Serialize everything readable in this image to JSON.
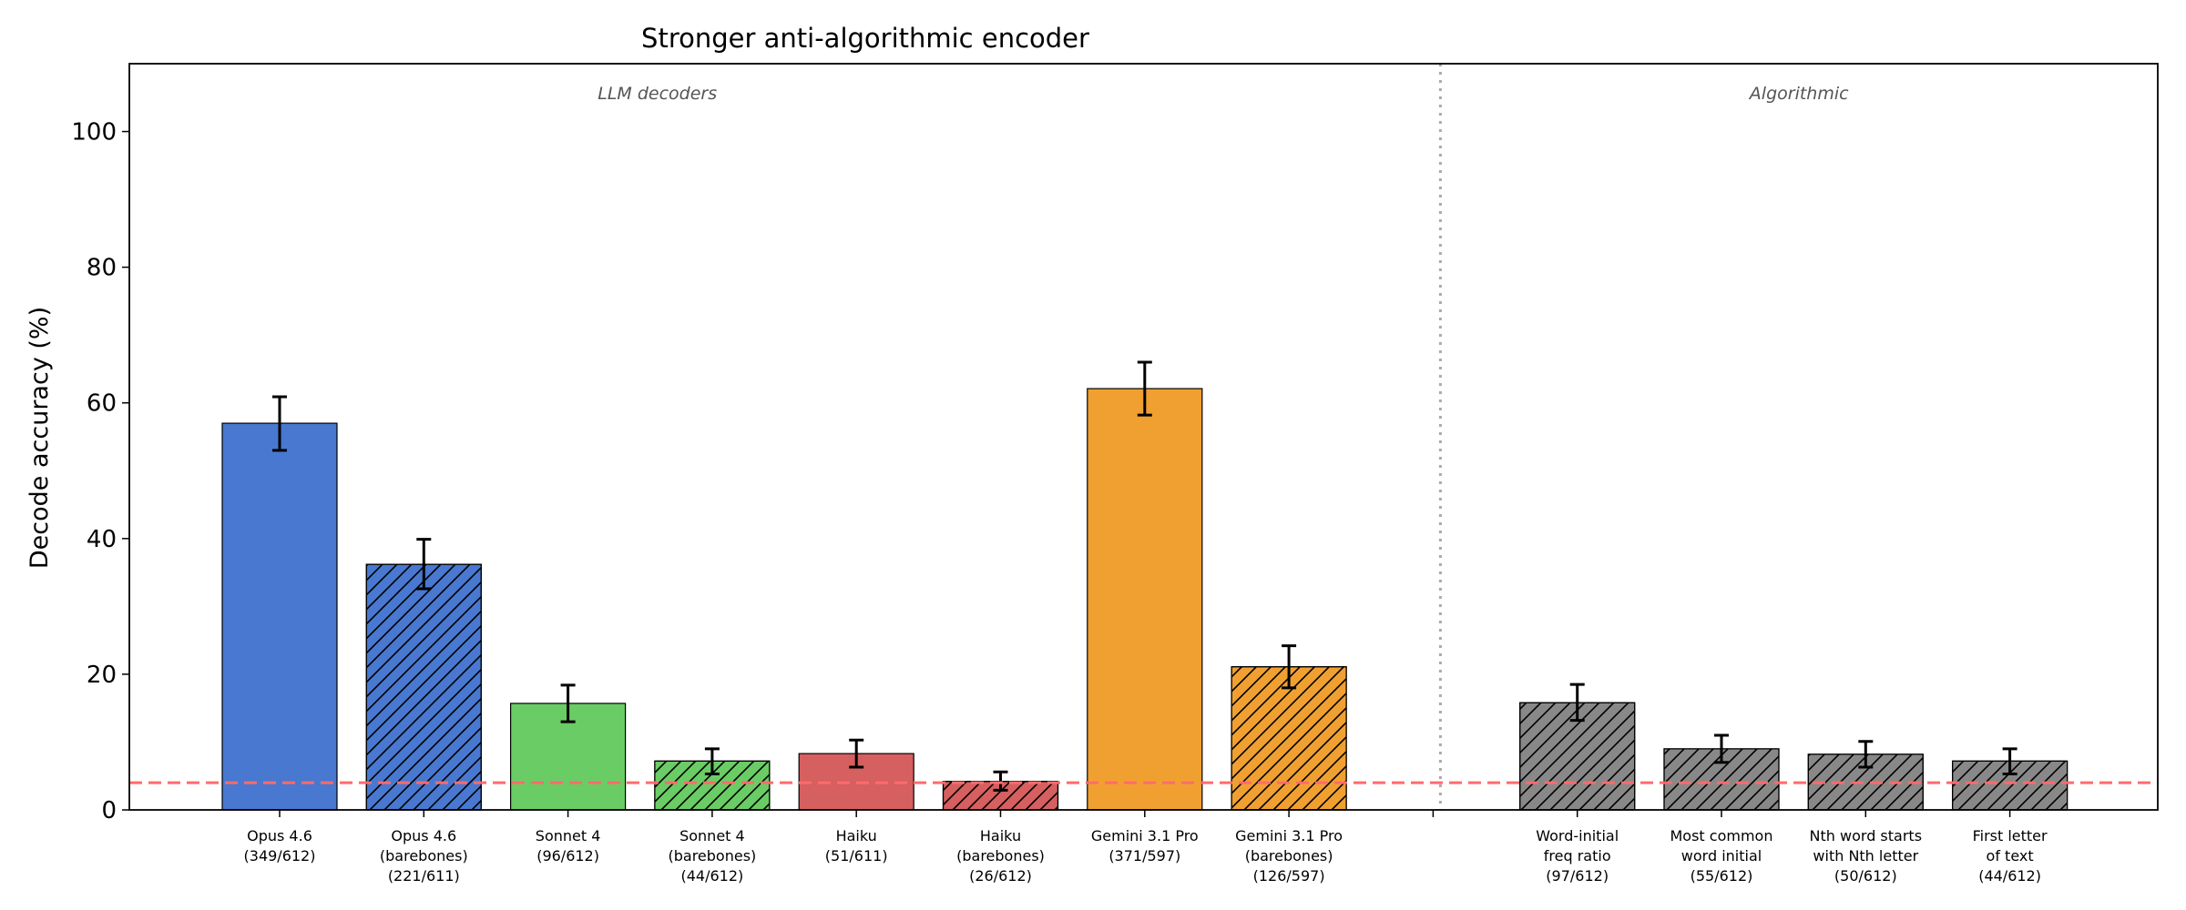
{
  "chart_data": {
    "type": "bar",
    "title": "Stronger anti-algorithmic encoder",
    "xlabel": "",
    "ylabel": "Decode accuracy (%)",
    "ylim": [
      0,
      110
    ],
    "yticks": [
      0,
      20,
      40,
      60,
      80,
      100
    ],
    "chance_line": 4,
    "chance_line_color": "#ff6b6b",
    "groups": [
      {
        "label": "LLM decoders",
        "first": 0,
        "last": 7
      },
      {
        "label": "Algorithmic",
        "first": 9,
        "last": 12
      }
    ],
    "bars": [
      {
        "label_lines": [
          "Opus 4.6",
          "(349/612)"
        ],
        "value": 57.0,
        "err_low": 53.0,
        "err_high": 60.9,
        "color": "#4878d0",
        "hatch": false
      },
      {
        "label_lines": [
          "Opus 4.6",
          "(barebones)",
          "(221/611)"
        ],
        "value": 36.2,
        "err_low": 32.6,
        "err_high": 39.9,
        "color": "#4878d0",
        "hatch": true
      },
      {
        "label_lines": [
          "Sonnet 4",
          "(96/612)"
        ],
        "value": 15.7,
        "err_low": 13.0,
        "err_high": 18.4,
        "color": "#6acc64",
        "hatch": false
      },
      {
        "label_lines": [
          "Sonnet 4",
          "(barebones)",
          "(44/612)"
        ],
        "value": 7.2,
        "err_low": 5.3,
        "err_high": 9.0,
        "color": "#6acc64",
        "hatch": true
      },
      {
        "label_lines": [
          "Haiku",
          "(51/611)"
        ],
        "value": 8.3,
        "err_low": 6.3,
        "err_high": 10.3,
        "color": "#d65f5f",
        "hatch": false
      },
      {
        "label_lines": [
          "Haiku",
          "(barebones)",
          "(26/612)"
        ],
        "value": 4.2,
        "err_low": 2.9,
        "err_high": 5.6,
        "color": "#d65f5f",
        "hatch": true
      },
      {
        "label_lines": [
          "Gemini 3.1 Pro",
          "(371/597)"
        ],
        "value": 62.1,
        "err_low": 58.2,
        "err_high": 66.0,
        "color": "#f0a030",
        "hatch": false
      },
      {
        "label_lines": [
          "Gemini 3.1 Pro",
          "(barebones)",
          "(126/597)"
        ],
        "value": 21.1,
        "err_low": 18.0,
        "err_high": 24.2,
        "color": "#f0a030",
        "hatch": true
      },
      {
        "label_lines": [],
        "value": null,
        "spacer": true
      },
      {
        "label_lines": [
          "Word-initial",
          "freq ratio",
          "(97/612)"
        ],
        "value": 15.8,
        "err_low": 13.2,
        "err_high": 18.5,
        "color": "#888888",
        "hatch": true
      },
      {
        "label_lines": [
          "Most common",
          "word initial",
          "(55/612)"
        ],
        "value": 9.0,
        "err_low": 7.0,
        "err_high": 11.0,
        "color": "#888888",
        "hatch": true
      },
      {
        "label_lines": [
          "Nth word starts",
          "with Nth letter",
          "(50/612)"
        ],
        "value": 8.2,
        "err_low": 6.3,
        "err_high": 10.1,
        "color": "#888888",
        "hatch": true
      },
      {
        "label_lines": [
          "First letter",
          "of text",
          "(44/612)"
        ],
        "value": 7.2,
        "err_low": 5.3,
        "err_high": 9.0,
        "color": "#888888",
        "hatch": true
      }
    ]
  }
}
